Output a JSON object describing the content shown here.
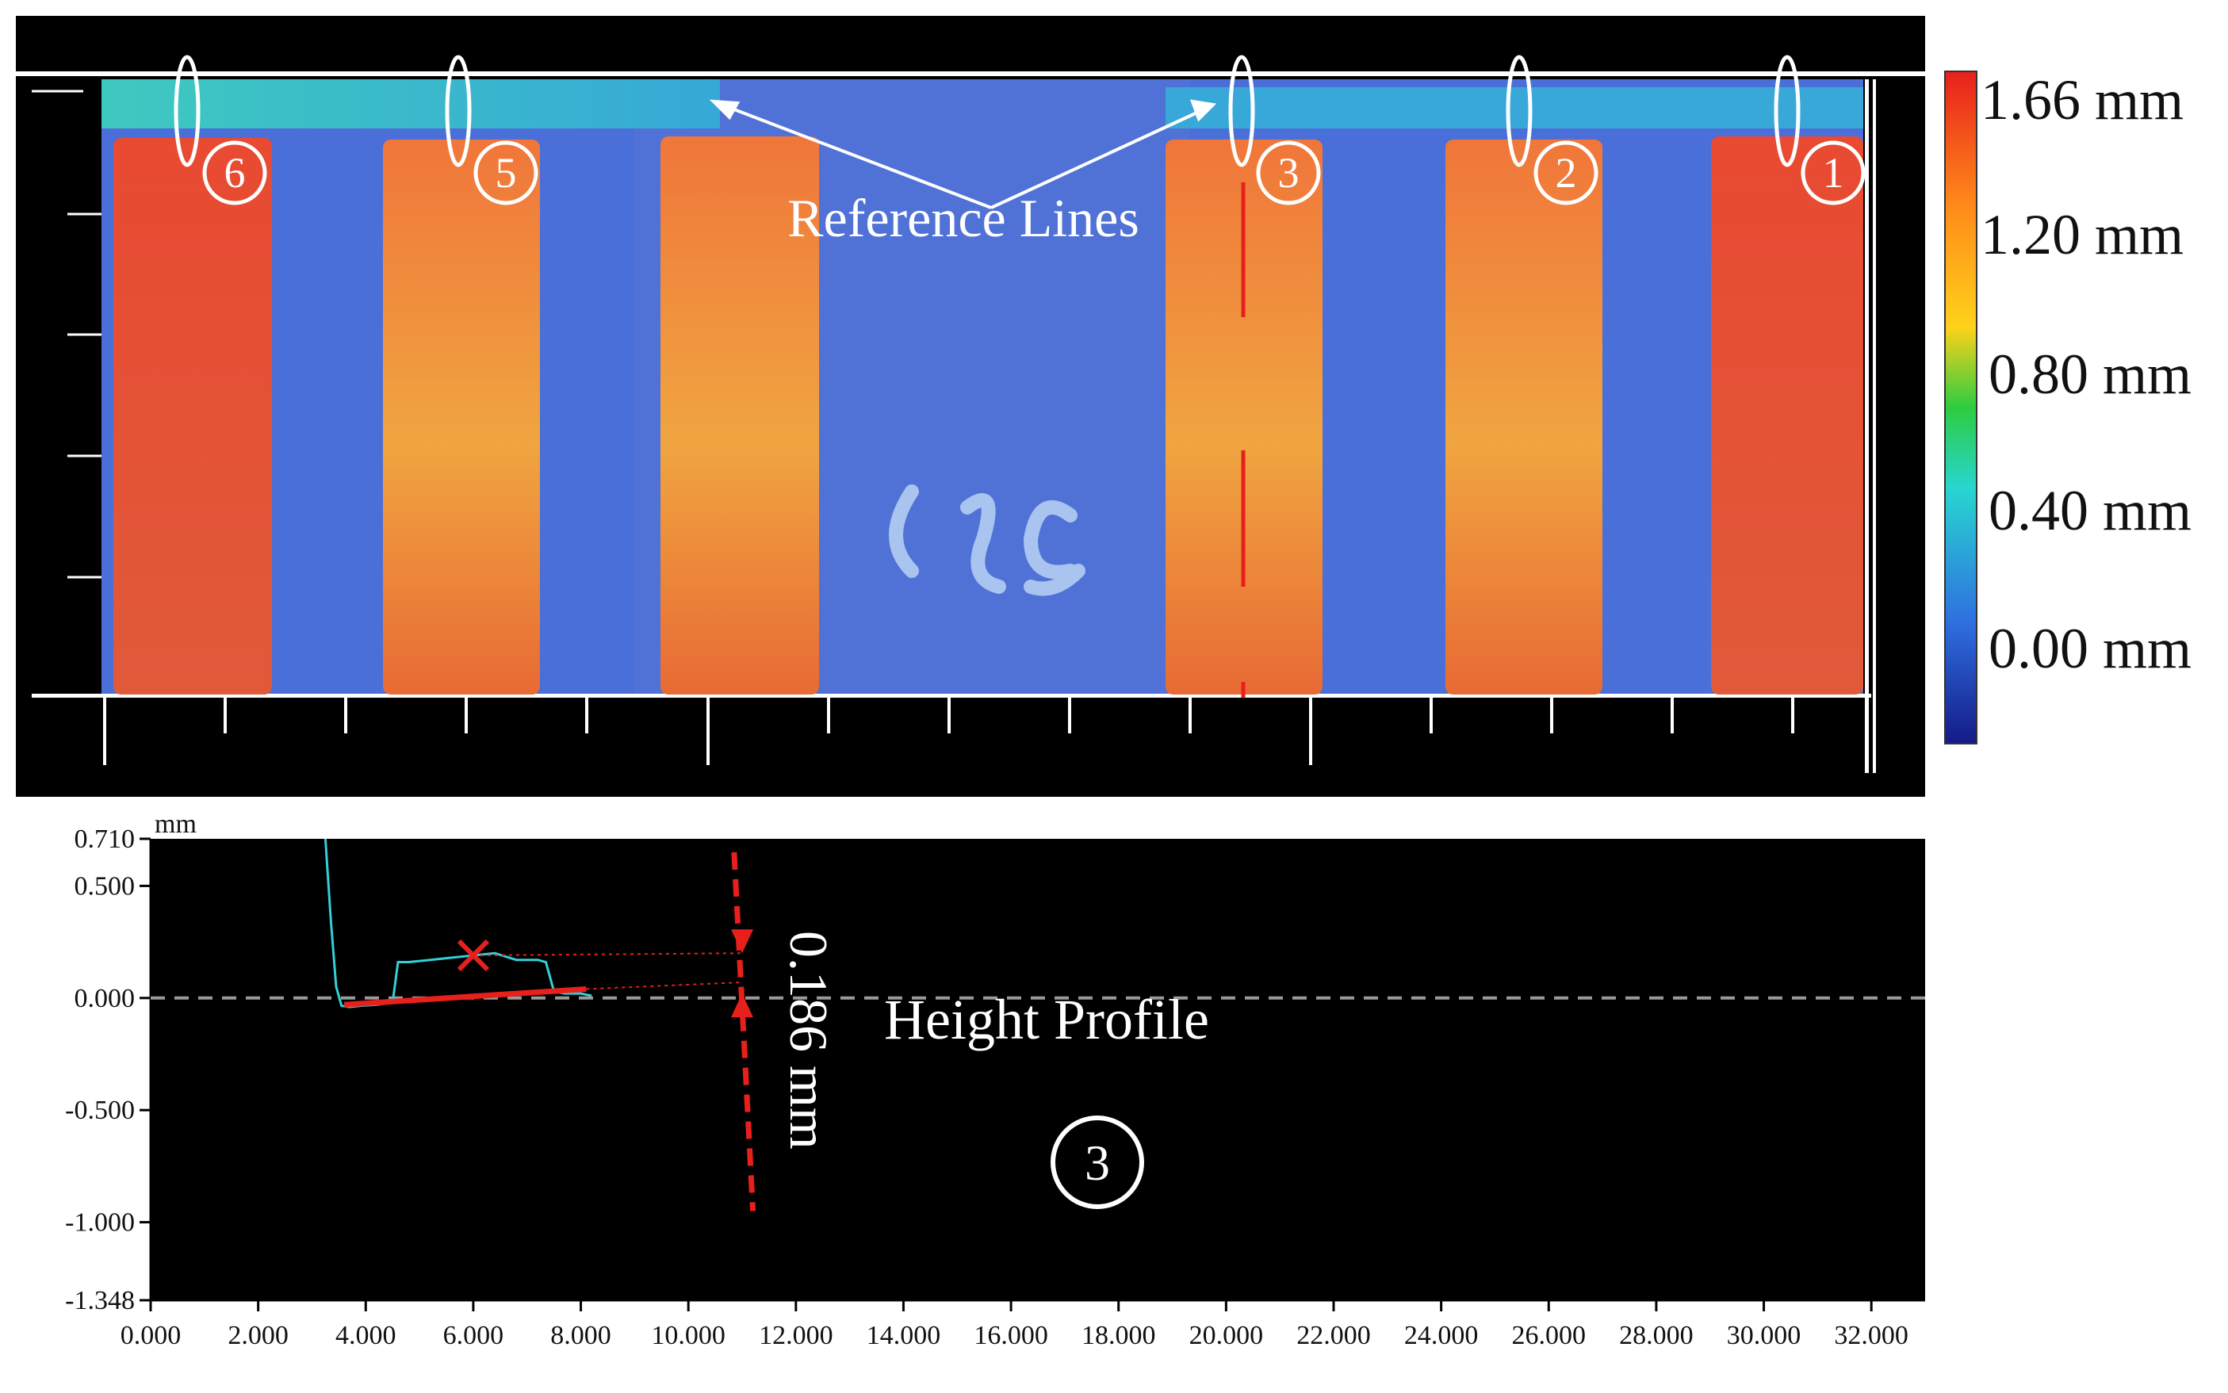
{
  "colorbar": {
    "labels": [
      "1.66 mm",
      "1.20 mm",
      "0.80 mm",
      "0.40 mm",
      "0.00 mm"
    ],
    "colors": [
      "#e8201c",
      "#ff8a1a",
      "#ffd21a",
      "#2ecc40",
      "#27d6d0",
      "#2f6fe0",
      "#141a86"
    ]
  },
  "heightmap": {
    "annotation": "Reference Lines",
    "markers": [
      "6",
      "5",
      "3",
      "2",
      "1"
    ],
    "substrate_color": "#4a6fd8",
    "bar_color": "#f08a35",
    "measure_line_color": "#e8201c"
  },
  "chart_data": {
    "type": "line",
    "title": "Height Profile",
    "marker": "3",
    "ylabel": "mm",
    "xlim": [
      0,
      33
    ],
    "ylim": [
      -1.348,
      0.71
    ],
    "xticks": [
      "0.000",
      "2.000",
      "4.000",
      "6.000",
      "8.000",
      "10.000",
      "12.000",
      "14.000",
      "16.000",
      "18.000",
      "20.000",
      "22.000",
      "24.000",
      "26.000",
      "28.000",
      "30.000",
      "32.000"
    ],
    "yticks": [
      "0.710",
      "0.500",
      "0.000",
      "-0.500",
      "-1.000",
      "-1.348"
    ],
    "series": [
      {
        "color": "#33d0d8",
        "x": [
          3.25,
          3.35,
          3.45,
          3.55,
          3.7,
          3.9,
          4.2,
          4.5,
          4.6,
          4.8,
          5.2,
          5.6,
          6.0,
          6.4,
          6.8,
          7.2,
          7.35,
          7.5,
          7.7,
          8.0,
          8.2
        ],
        "y": [
          0.71,
          0.35,
          0.05,
          -0.035,
          -0.04,
          -0.035,
          -0.03,
          -0.02,
          0.16,
          0.16,
          0.17,
          0.18,
          0.19,
          0.2,
          0.17,
          0.17,
          0.16,
          0.03,
          0.02,
          0.02,
          0.01
        ]
      }
    ],
    "baseline_y": 0.0,
    "measurement": {
      "label": "0.186 mm",
      "value": 0.186,
      "marker_x": 6.0,
      "marker_y": 0.19,
      "color": "#e8201c"
    }
  }
}
